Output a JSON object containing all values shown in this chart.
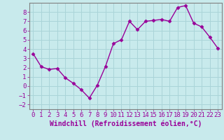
{
  "x": [
    0,
    1,
    2,
    3,
    4,
    5,
    6,
    7,
    8,
    9,
    10,
    11,
    12,
    13,
    14,
    15,
    16,
    17,
    18,
    19,
    20,
    21,
    22,
    23
  ],
  "y": [
    3.5,
    2.1,
    1.8,
    1.9,
    0.9,
    0.3,
    -0.4,
    -1.3,
    0.1,
    2.1,
    4.6,
    5.0,
    7.0,
    6.1,
    7.0,
    7.1,
    7.2,
    7.0,
    8.5,
    8.7,
    6.8,
    6.4,
    5.3,
    4.1
  ],
  "line_color": "#990099",
  "marker": "D",
  "marker_size": 2.5,
  "bg_color": "#c8eaec",
  "grid_color": "#aad4d8",
  "xlabel": "Windchill (Refroidissement éolien,°C)",
  "xlim": [
    -0.5,
    23.5
  ],
  "ylim": [
    -2.5,
    9.0
  ],
  "yticks": [
    -2,
    -1,
    0,
    1,
    2,
    3,
    4,
    5,
    6,
    7,
    8
  ],
  "xticks": [
    0,
    1,
    2,
    3,
    4,
    5,
    6,
    7,
    8,
    9,
    10,
    11,
    12,
    13,
    14,
    15,
    16,
    17,
    18,
    19,
    20,
    21,
    22,
    23
  ],
  "tick_color": "#990099",
  "label_color": "#990099",
  "spine_color": "#808080",
  "font_size": 6.5,
  "xlabel_fontsize": 7.0,
  "linewidth": 1.0
}
